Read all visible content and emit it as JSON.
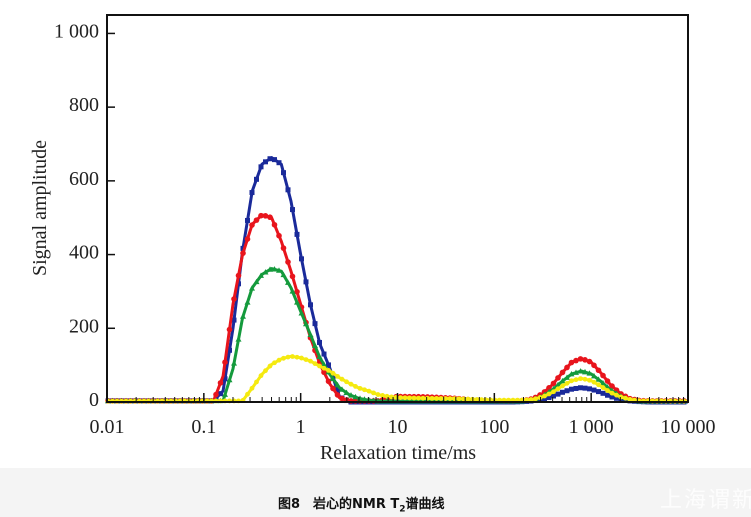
{
  "chart_data": {
    "type": "line",
    "xlabel": "Relaxation time/ms",
    "ylabel": "Signal amplitude",
    "xscale": "log",
    "xlim": [
      0.01,
      10000
    ],
    "ylim": [
      0,
      1050
    ],
    "grid": false,
    "x_ticks": [
      {
        "value": 0.01,
        "label": "0.01"
      },
      {
        "value": 0.1,
        "label": "0.1"
      },
      {
        "value": 1,
        "label": "1"
      },
      {
        "value": 10,
        "label": "10"
      },
      {
        "value": 100,
        "label": "100"
      },
      {
        "value": 1000,
        "label": "1 000"
      },
      {
        "value": 10000,
        "label": "10 000"
      }
    ],
    "y_ticks": [
      {
        "value": 0,
        "label": "0"
      },
      {
        "value": 200,
        "label": "200"
      },
      {
        "value": 400,
        "label": "400"
      },
      {
        "value": 600,
        "label": "600"
      },
      {
        "value": 800,
        "label": "800"
      },
      {
        "value": 1000,
        "label": "1 000"
      }
    ],
    "series": [
      {
        "color": "#1a2a9a",
        "marker": "square",
        "points": [
          [
            0.01,
            3
          ],
          [
            0.126,
            3
          ],
          [
            0.158,
            30
          ],
          [
            0.2,
            200
          ],
          [
            0.251,
            409
          ],
          [
            0.316,
            572
          ],
          [
            0.398,
            645
          ],
          [
            0.501,
            663
          ],
          [
            0.631,
            645
          ],
          [
            0.794,
            545
          ],
          [
            1,
            400
          ],
          [
            1.26,
            265
          ],
          [
            1.58,
            157
          ],
          [
            2.0,
            92
          ],
          [
            2.51,
            15
          ],
          [
            3.16,
            0
          ],
          [
            10,
            0
          ],
          [
            158,
            0
          ],
          [
            200,
            1
          ],
          [
            251,
            3
          ],
          [
            316,
            7
          ],
          [
            398,
            15
          ],
          [
            501,
            26
          ],
          [
            631,
            35
          ],
          [
            794,
            39
          ],
          [
            1000,
            35
          ],
          [
            1260,
            26
          ],
          [
            1580,
            15
          ],
          [
            2000,
            7
          ],
          [
            2510,
            3
          ],
          [
            3160,
            1
          ],
          [
            3980,
            0
          ],
          [
            10000,
            0
          ]
        ]
      },
      {
        "color": "#e8141c",
        "marker": "circle",
        "points": [
          [
            0.01,
            3
          ],
          [
            0.126,
            3
          ],
          [
            0.158,
            70
          ],
          [
            0.2,
            265
          ],
          [
            0.251,
            400
          ],
          [
            0.316,
            482
          ],
          [
            0.398,
            508
          ],
          [
            0.501,
            500
          ],
          [
            0.631,
            436
          ],
          [
            0.794,
            355
          ],
          [
            1,
            265
          ],
          [
            1.26,
            175
          ],
          [
            1.58,
            103
          ],
          [
            2.0,
            49
          ],
          [
            2.51,
            12
          ],
          [
            3.16,
            3
          ],
          [
            6.31,
            3
          ],
          [
            10,
            15
          ],
          [
            20,
            14
          ],
          [
            39.8,
            10
          ],
          [
            63.1,
            5
          ],
          [
            100,
            3
          ],
          [
            158,
            3
          ],
          [
            200,
            4
          ],
          [
            251,
            9
          ],
          [
            316,
            23
          ],
          [
            398,
            47
          ],
          [
            501,
            79
          ],
          [
            631,
            108
          ],
          [
            794,
            118
          ],
          [
            1000,
            108
          ],
          [
            1260,
            79
          ],
          [
            1580,
            47
          ],
          [
            2000,
            23
          ],
          [
            2510,
            9
          ],
          [
            3160,
            4
          ],
          [
            3980,
            3
          ],
          [
            10000,
            3
          ]
        ]
      },
      {
        "color": "#149a3c",
        "marker": "triangle",
        "points": [
          [
            0.01,
            3
          ],
          [
            0.158,
            3
          ],
          [
            0.2,
            90
          ],
          [
            0.251,
            228
          ],
          [
            0.316,
            310
          ],
          [
            0.398,
            346
          ],
          [
            0.501,
            362
          ],
          [
            0.631,
            355
          ],
          [
            0.794,
            310
          ],
          [
            1,
            246
          ],
          [
            1.26,
            183
          ],
          [
            1.58,
            120
          ],
          [
            2.0,
            75
          ],
          [
            2.51,
            39
          ],
          [
            3.16,
            20
          ],
          [
            3.98,
            10
          ],
          [
            5.01,
            5
          ],
          [
            6.31,
            2
          ],
          [
            10,
            2
          ],
          [
            158,
            2
          ],
          [
            200,
            2
          ],
          [
            251,
            6
          ],
          [
            316,
            16
          ],
          [
            398,
            33
          ],
          [
            501,
            56
          ],
          [
            631,
            76
          ],
          [
            794,
            84
          ],
          [
            1000,
            76
          ],
          [
            1260,
            56
          ],
          [
            1580,
            33
          ],
          [
            2000,
            16
          ],
          [
            2510,
            6
          ],
          [
            3160,
            2
          ],
          [
            10000,
            2
          ]
        ]
      },
      {
        "color": "#f5ea10",
        "marker": "star",
        "points": [
          [
            0.01,
            2
          ],
          [
            0.251,
            3
          ],
          [
            0.316,
            38
          ],
          [
            0.398,
            75
          ],
          [
            0.501,
            102
          ],
          [
            0.631,
            117
          ],
          [
            0.794,
            124
          ],
          [
            1,
            120
          ],
          [
            1.26,
            111
          ],
          [
            1.58,
            97
          ],
          [
            2.0,
            84
          ],
          [
            2.51,
            66
          ],
          [
            3.16,
            51
          ],
          [
            3.98,
            38
          ],
          [
            5.01,
            30
          ],
          [
            6.31,
            20
          ],
          [
            7.94,
            15
          ],
          [
            10,
            12
          ],
          [
            20,
            10
          ],
          [
            39.8,
            9
          ],
          [
            63.1,
            7
          ],
          [
            100,
            5
          ],
          [
            200,
            5
          ],
          [
            251,
            7
          ],
          [
            316,
            14
          ],
          [
            398,
            26
          ],
          [
            501,
            43
          ],
          [
            631,
            58
          ],
          [
            794,
            64
          ],
          [
            1000,
            58
          ],
          [
            1260,
            43
          ],
          [
            1580,
            26
          ],
          [
            2000,
            14
          ],
          [
            2510,
            7
          ],
          [
            3160,
            3
          ],
          [
            10000,
            2
          ]
        ]
      }
    ]
  },
  "caption": {
    "prefix": "图8　岩心的NMR T",
    "subscript": "2",
    "suffix": "谱曲线"
  },
  "watermark": "上海谓新"
}
